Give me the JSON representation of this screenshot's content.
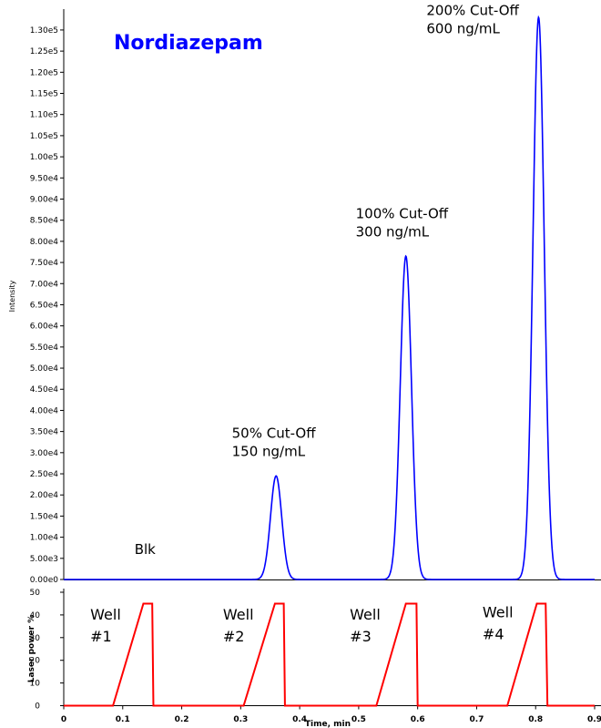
{
  "chart_data": [
    {
      "type": "line",
      "title": "Nordiazepam",
      "title_color": "#0000ff",
      "xlabel": "",
      "ylabel": "Intensity",
      "xlim": [
        0,
        0.9
      ],
      "ylim": [
        0,
        133000
      ],
      "y_ticks": [
        "0.00e0",
        "5.00e3",
        "1.00e4",
        "1.50e4",
        "2.00e4",
        "2.50e4",
        "3.00e4",
        "3.50e4",
        "4.00e4",
        "4.50e4",
        "5.00e4",
        "5.50e4",
        "6.00e4",
        "6.50e4",
        "7.00e4",
        "7.50e4",
        "8.00e4",
        "8.50e4",
        "9.00e4",
        "9.50e4",
        "1.00e5",
        "1.05e5",
        "1.10e5",
        "1.15e5",
        "1.20e5",
        "1.25e5",
        "1.30e5"
      ],
      "grid": false,
      "series": [
        {
          "color": "#0000ff",
          "peaks": [
            {
              "x": 0.36,
              "y": 24500,
              "sigma": 0.0095
            },
            {
              "x": 0.58,
              "y": 76500,
              "sigma": 0.0095
            },
            {
              "x": 0.805,
              "y": 133000,
              "sigma": 0.0095
            }
          ]
        }
      ],
      "annotations": [
        {
          "lines": [
            "Blk"
          ],
          "x": 0.12,
          "y": 6000
        },
        {
          "lines": [
            "50% Cut-Off",
            "150 ng/mL"
          ],
          "x": 0.285,
          "y": 33500
        },
        {
          "lines": [
            "100% Cut-Off",
            "300 ng/mL"
          ],
          "x": 0.495,
          "y": 85500
        },
        {
          "lines": [
            "200% Cut-Off",
            "600 ng/mL"
          ],
          "x": 0.615,
          "y": 133500
        }
      ]
    },
    {
      "type": "line",
      "title": "",
      "xlabel": "Time, min",
      "ylabel": "Laser power %",
      "xlim": [
        0,
        0.9
      ],
      "ylim": [
        0,
        50
      ],
      "x_ticks": [
        "0",
        "0.1",
        "0.2",
        "0.3",
        "0.4",
        "0.5",
        "0.6",
        "0.7",
        "0.8",
        "0.9"
      ],
      "y_ticks": [
        "0",
        "10",
        "20",
        "30",
        "40",
        "50"
      ],
      "grid": false,
      "series": [
        {
          "color": "#ff0000",
          "x": [
            0.0,
            0.0835,
            0.135,
            0.15,
            0.152,
            0.305,
            0.358,
            0.373,
            0.375,
            0.53,
            0.58,
            0.598,
            0.6,
            0.752,
            0.802,
            0.817,
            0.82,
            0.9
          ],
          "y": [
            0,
            0,
            45,
            45,
            0,
            0,
            45,
            45,
            0,
            0,
            45,
            45,
            0,
            0,
            45,
            45,
            0,
            0
          ]
        }
      ],
      "annotations": [
        {
          "lines": [
            "Well",
            "#1"
          ],
          "x": 0.045,
          "y": 38
        },
        {
          "lines": [
            "Well",
            "#2"
          ],
          "x": 0.27,
          "y": 38
        },
        {
          "lines": [
            "Well",
            "#3"
          ],
          "x": 0.485,
          "y": 38
        },
        {
          "lines": [
            "Well",
            "#4"
          ],
          "x": 0.71,
          "y": 39
        }
      ]
    }
  ]
}
